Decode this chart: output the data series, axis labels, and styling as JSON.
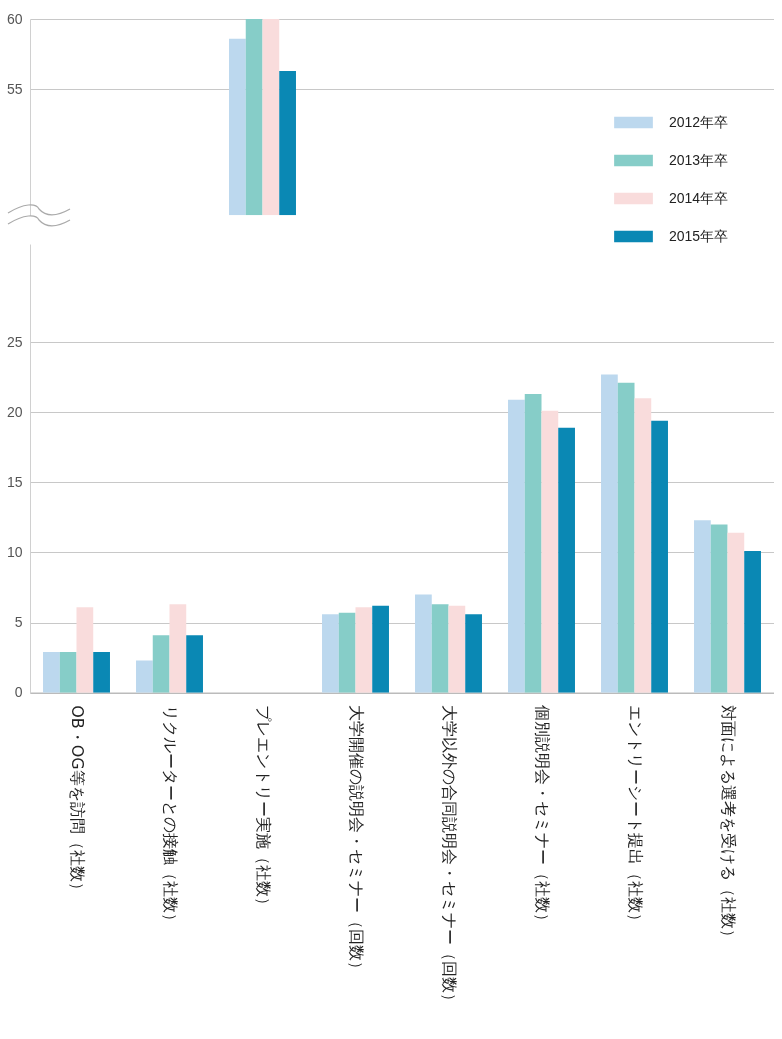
{
  "chart_data": [
    {
      "type": "bar",
      "categories": [
        null,
        null,
        null,
        null,
        null,
        null,
        null,
        null
      ],
      "series": [
        {
          "name": "2012年卒",
          "color": "#bcd8ee",
          "values": [
            null,
            null,
            58.6,
            null,
            null,
            null,
            null,
            null
          ]
        },
        {
          "name": "2013年卒",
          "color": "#86cdc8",
          "values": [
            null,
            null,
            60,
            null,
            null,
            null,
            null,
            null
          ]
        },
        {
          "name": "2014年卒",
          "color": "#f9dcdc",
          "values": [
            null,
            null,
            60,
            null,
            null,
            null,
            null,
            null
          ]
        },
        {
          "name": "2015年卒",
          "color": "#0a88b4",
          "values": [
            null,
            null,
            56.3,
            null,
            null,
            null,
            null,
            null
          ]
        }
      ],
      "ylim": [
        46,
        60
      ],
      "yticks": [
        55,
        60
      ],
      "tick_labels": "y",
      "grid": "y",
      "legend": "right"
    },
    {
      "type": "bar",
      "categories": [
        "OB・OG等を訪問（社数）",
        "リクルーターとの接触（社数）",
        "プレエントリー実施（社数）",
        "大学開催の説明会・セミナー（回数）",
        "大学以外の合同説明会・セミナー（回数）",
        "個別説明会・セミナー（社数）",
        "エントリーシート提出（社数）",
        "対面による選考を受ける（社数）"
      ],
      "series": [
        {
          "color": "#bcd8ee",
          "values": [
            2.9,
            2.3,
            null,
            5.6,
            7.0,
            20.9,
            22.7,
            12.3
          ]
        },
        {
          "color": "#86cdc8",
          "values": [
            2.9,
            4.1,
            null,
            5.7,
            6.3,
            21.3,
            22.1,
            12.0
          ]
        },
        {
          "color": "#f9dcdc",
          "values": [
            6.1,
            6.3,
            null,
            6.1,
            6.2,
            20.1,
            21.0,
            11.4
          ]
        },
        {
          "color": "#0a88b4",
          "values": [
            2.9,
            4.1,
            null,
            6.2,
            5.6,
            18.9,
            19.4,
            10.1
          ]
        }
      ],
      "ylim": [
        0,
        32
      ],
      "yticks": [
        0,
        5,
        10,
        15,
        20,
        25
      ],
      "grid": "y"
    }
  ]
}
